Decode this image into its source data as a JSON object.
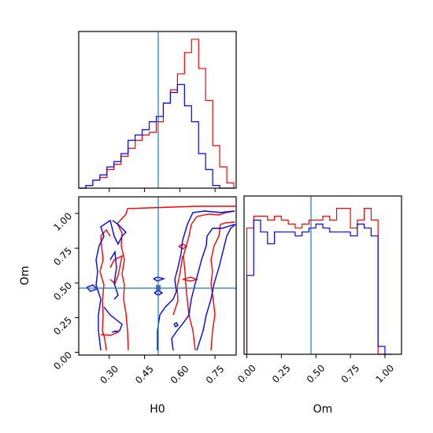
{
  "chart_data": {
    "type": "corner",
    "params": [
      {
        "key": "H0",
        "label": "H0",
        "range": [
          0.17,
          0.84
        ],
        "ticks": [
          "0.30",
          "0.45",
          "0.60",
          "0.75"
        ],
        "tick_values": [
          0.3,
          0.45,
          0.6,
          0.75
        ],
        "truth": 0.505
      },
      {
        "key": "Om",
        "label": "Om",
        "range": [
          -0.02,
          1.12
        ],
        "ticks": [
          "0.00",
          "0.25",
          "0.50",
          "0.75",
          "1.00"
        ],
        "tick_values": [
          0.0,
          0.25,
          0.5,
          0.75,
          1.0
        ],
        "truth": 0.46
      }
    ],
    "grid": false,
    "series": [
      {
        "color": "#ff0000",
        "hist_H0": {
          "edges": [
            0.17,
            0.2,
            0.23,
            0.26,
            0.29,
            0.32,
            0.35,
            0.38,
            0.41,
            0.44,
            0.47,
            0.5,
            0.53,
            0.56,
            0.59,
            0.62,
            0.65,
            0.68,
            0.71,
            0.74,
            0.77,
            0.8,
            0.83
          ],
          "values": [
            0,
            1,
            3,
            4,
            7,
            9,
            12,
            15,
            18,
            20,
            21,
            25,
            32,
            37,
            43,
            51,
            56,
            45,
            33,
            16,
            8,
            2
          ]
        },
        "hist_Om": {
          "edges": [
            0.0,
            0.05,
            0.1,
            0.15,
            0.2,
            0.25,
            0.3,
            0.35,
            0.4,
            0.45,
            0.5,
            0.55,
            0.6,
            0.65,
            0.7,
            0.75,
            0.8,
            0.85,
            0.9,
            0.95,
            1.0
          ],
          "values": [
            32,
            35,
            35,
            34,
            35,
            34,
            33,
            32,
            33,
            34,
            34,
            35,
            34,
            37,
            37,
            32,
            34,
            37,
            34,
            0
          ]
        }
      },
      {
        "color": "#0000ff",
        "hist_H0": {
          "edges": [
            0.17,
            0.2,
            0.23,
            0.26,
            0.29,
            0.32,
            0.35,
            0.38,
            0.41,
            0.44,
            0.47,
            0.5,
            0.53,
            0.56,
            0.59,
            0.62,
            0.65,
            0.68,
            0.71,
            0.74,
            0.77,
            0.8,
            0.83
          ],
          "values": [
            0,
            1,
            3,
            5,
            8,
            10,
            13,
            18,
            20,
            22,
            25,
            27,
            32,
            36,
            39,
            31,
            25,
            13,
            7,
            1,
            0,
            0
          ]
        },
        "hist_Om": {
          "edges": [
            0.0,
            0.05,
            0.1,
            0.15,
            0.2,
            0.25,
            0.3,
            0.35,
            0.4,
            0.45,
            0.5,
            0.55,
            0.6,
            0.65,
            0.7,
            0.75,
            0.8,
            0.85,
            0.9,
            0.95,
            1.0,
            1.05
          ],
          "values": [
            20,
            34,
            31,
            28,
            31,
            31,
            31,
            30,
            31,
            32,
            33,
            32,
            31,
            31,
            31,
            30,
            33,
            32,
            30,
            2,
            0
          ]
        }
      }
    ]
  }
}
